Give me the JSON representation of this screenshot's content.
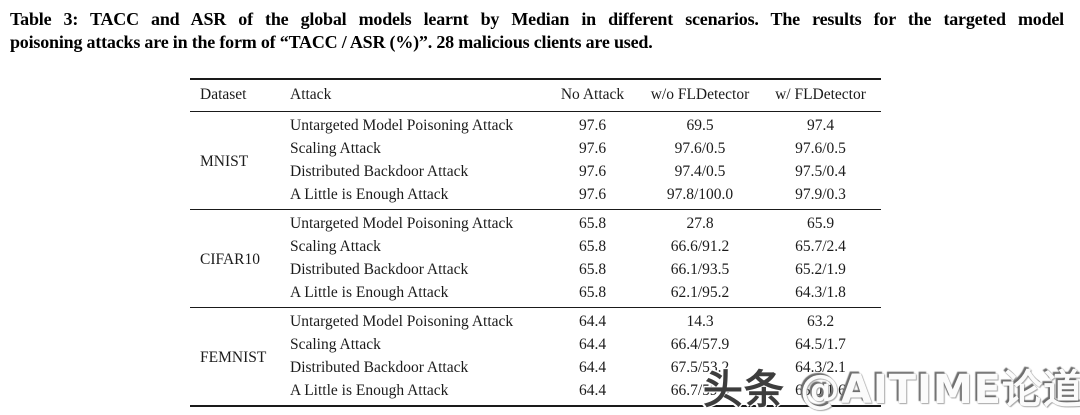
{
  "caption": {
    "line1": "Table 3: TACC and ASR of the global models learnt by Median in different scenarios. The results for the targeted model",
    "line2": "poisoning attacks are in the form of “TACC / ASR (%)”. 28 malicious clients are used."
  },
  "table": {
    "columns": [
      "Dataset",
      "Attack",
      "No Attack",
      "w/o FLDetector",
      "w/ FLDetector"
    ],
    "groups": [
      {
        "dataset": "MNIST",
        "rows": [
          {
            "attack": "Untargeted Model Poisoning Attack",
            "no_attack": "97.6",
            "wo_fldetector": "69.5",
            "w_fldetector": "97.4"
          },
          {
            "attack": "Scaling Attack",
            "no_attack": "97.6",
            "wo_fldetector": "97.6/0.5",
            "w_fldetector": "97.6/0.5"
          },
          {
            "attack": "Distributed Backdoor Attack",
            "no_attack": "97.6",
            "wo_fldetector": "97.4/0.5",
            "w_fldetector": "97.5/0.4"
          },
          {
            "attack": "A Little is Enough Attack",
            "no_attack": "97.6",
            "wo_fldetector": "97.8/100.0",
            "w_fldetector": "97.9/0.3"
          }
        ]
      },
      {
        "dataset": "CIFAR10",
        "rows": [
          {
            "attack": "Untargeted Model Poisoning Attack",
            "no_attack": "65.8",
            "wo_fldetector": "27.8",
            "w_fldetector": "65.9"
          },
          {
            "attack": "Scaling Attack",
            "no_attack": "65.8",
            "wo_fldetector": "66.6/91.2",
            "w_fldetector": "65.7/2.4"
          },
          {
            "attack": "Distributed Backdoor Attack",
            "no_attack": "65.8",
            "wo_fldetector": "66.1/93.5",
            "w_fldetector": "65.2/1.9"
          },
          {
            "attack": "A Little is Enough Attack",
            "no_attack": "65.8",
            "wo_fldetector": "62.1/95.2",
            "w_fldetector": "64.3/1.8"
          }
        ]
      },
      {
        "dataset": "FEMNIST",
        "rows": [
          {
            "attack": "Untargeted Model Poisoning Attack",
            "no_attack": "64.4",
            "wo_fldetector": "14.3",
            "w_fldetector": "63.2"
          },
          {
            "attack": "Scaling Attack",
            "no_attack": "64.4",
            "wo_fldetector": "66.4/57.9",
            "w_fldetector": "64.5/1.7"
          },
          {
            "attack": "Distributed Backdoor Attack",
            "no_attack": "64.4",
            "wo_fldetector": "67.5/53.2",
            "w_fldetector": "64.3/2.1"
          },
          {
            "attack": "A Little is Enough Attack",
            "no_attack": "64.4",
            "wo_fldetector": "66.7/59.6",
            "w_fldetector": "65.0/1.6"
          }
        ]
      }
    ]
  },
  "watermark": {
    "prefix": "头条",
    "handle": "@AITIME论道"
  }
}
